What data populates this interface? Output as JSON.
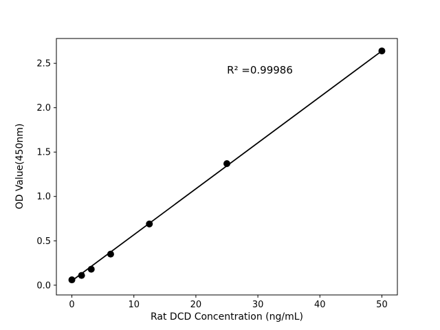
{
  "figure": {
    "background": "#ffffff"
  },
  "chart_data": {
    "type": "scatter",
    "title": "",
    "xlabel": "Rat DCD Concentration (ng/mL)",
    "ylabel": "OD Value(450nm)",
    "annotation": "R² =0.99986",
    "x": [
      0,
      1.5625,
      3.125,
      6.25,
      12.5,
      25,
      50
    ],
    "y": [
      0.06,
      0.11,
      0.18,
      0.35,
      0.69,
      1.37,
      2.64
    ],
    "fit_line": {
      "x1": 0,
      "y1": 0.05,
      "x2": 50,
      "y2": 2.64,
      "r_squared": 0.99986
    },
    "x_ticks": [
      0,
      10,
      20,
      30,
      40,
      50
    ],
    "x_tick_labels": [
      "0",
      "10",
      "20",
      "30",
      "40",
      "50"
    ],
    "y_ticks": [
      0.0,
      0.5,
      1.0,
      1.5,
      2.0,
      2.5
    ],
    "y_tick_labels": [
      "0.0",
      "0.5",
      "1.0",
      "1.5",
      "2.0",
      "2.5"
    ],
    "xlim": [
      -2.5,
      52.5
    ],
    "ylim": [
      -0.11,
      2.78
    ],
    "grid": false,
    "legend": "none",
    "marker_color": "#000000",
    "line_color": "#000000",
    "axis_color": "#000000"
  }
}
